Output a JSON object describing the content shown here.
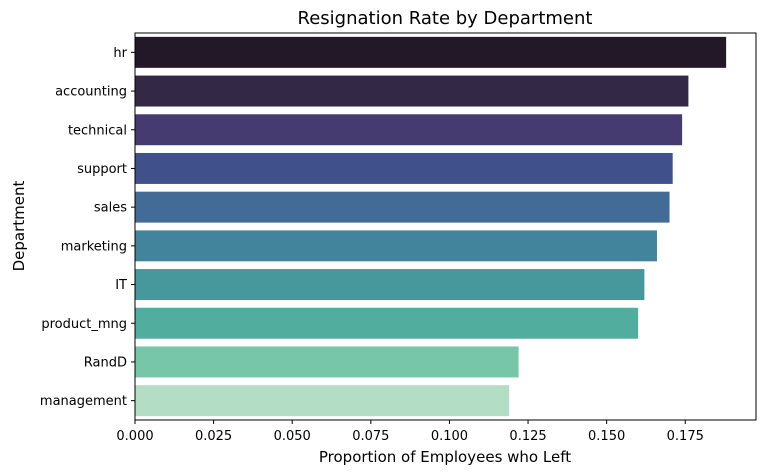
{
  "chart_data": {
    "type": "bar",
    "orientation": "horizontal",
    "title": "Resignation Rate by Department",
    "xlabel": "Proportion of Employees who Left",
    "ylabel": "Department",
    "categories": [
      "hr",
      "accounting",
      "technical",
      "support",
      "sales",
      "marketing",
      "IT",
      "product_mng",
      "RandD",
      "management"
    ],
    "values": [
      0.188,
      0.176,
      0.174,
      0.171,
      0.17,
      0.166,
      0.162,
      0.16,
      0.122,
      0.119
    ],
    "colors": [
      "#231827",
      "#342847",
      "#463b71",
      "#3f508a",
      "#426c95",
      "#41849b",
      "#46989c",
      "#51ae9f",
      "#78c6a9",
      "#b3ddc4"
    ],
    "xlim": [
      0,
      0.1975
    ],
    "xticks": [
      0.0,
      0.025,
      0.05,
      0.075,
      0.1,
      0.125,
      0.15,
      0.175
    ],
    "xtick_labels": [
      "0.000",
      "0.025",
      "0.050",
      "0.075",
      "0.100",
      "0.125",
      "0.150",
      "0.175"
    ],
    "grid": false,
    "legend": null
  }
}
